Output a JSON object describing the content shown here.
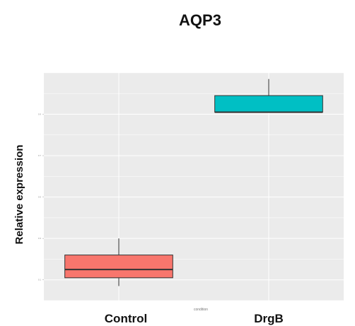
{
  "chart_data": {
    "type": "box",
    "title": "AQP3",
    "ylabel": "Relative expression",
    "xlabel": "condition",
    "categories": [
      "Control",
      "DrgB"
    ],
    "ylim": [
      0.0,
      1.1
    ],
    "yticks": [
      0.1,
      0.3,
      0.5,
      0.7,
      0.9
    ],
    "boxes": [
      {
        "category": "Control",
        "min": 0.07,
        "q1": 0.11,
        "median": 0.15,
        "q3": 0.22,
        "max": 0.3,
        "color": "#F8766D"
      },
      {
        "category": "DrgB",
        "min": 0.91,
        "q1": 0.91,
        "median": 0.91,
        "q3": 0.99,
        "max": 1.07,
        "color": "#00BFC4"
      }
    ],
    "grid": true,
    "panel_color": "#EBEBEB",
    "legend": "none"
  }
}
